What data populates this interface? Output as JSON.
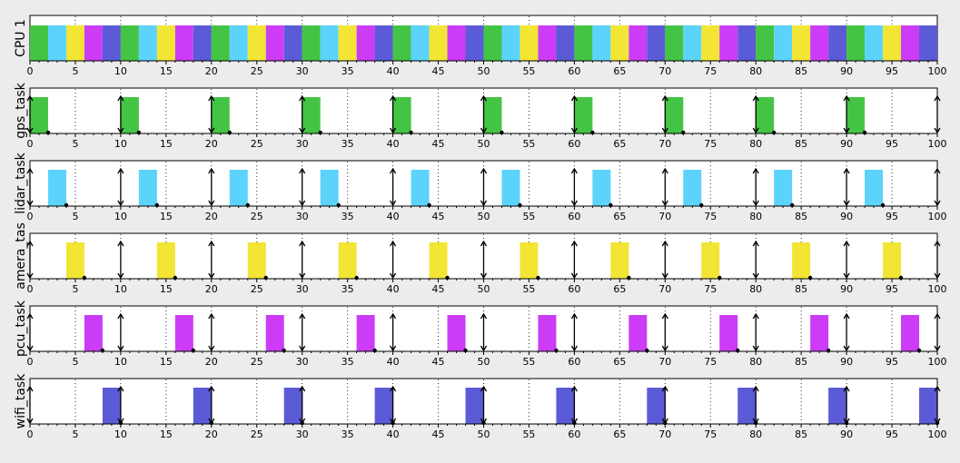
{
  "colors": {
    "gps_task": "#44c444",
    "lidar_task": "#5bd3fb",
    "camera_task": "#f2e534",
    "pcu_task": "#cc3cf6",
    "wifi_task": "#5b5bd7",
    "panel_bg": "#ececec",
    "plot_bg": "#ffffff",
    "axis": "#000000"
  },
  "chart_data": [
    {
      "type": "timeline",
      "ylabel": "CPU 1",
      "xlim": [
        0,
        100
      ],
      "xticks": [
        "0",
        "5",
        "10",
        "15",
        "20",
        "25",
        "30",
        "35",
        "40",
        "45",
        "50",
        "55",
        "60",
        "65",
        "70",
        "75",
        "80",
        "85",
        "90",
        "95",
        "100"
      ],
      "grid": "dotted vertical at every 5",
      "pattern": [
        "gps_task",
        "lidar_task",
        "camera_task",
        "pcu_task",
        "wifi_task"
      ],
      "slot_length": 2,
      "segments_from": 0,
      "segments_to": 100
    },
    {
      "type": "timeline",
      "ylabel": "gps_task",
      "task": "gps_task",
      "xlim": [
        0,
        100
      ],
      "xticks": [
        "0",
        "5",
        "10",
        "15",
        "20",
        "25",
        "30",
        "35",
        "40",
        "45",
        "50",
        "55",
        "60",
        "65",
        "70",
        "75",
        "80",
        "85",
        "90",
        "95",
        "100"
      ],
      "period": 10,
      "execution_start_offset": 0,
      "execution_length": 2,
      "releases": [
        0,
        10,
        20,
        30,
        40,
        50,
        60,
        70,
        80,
        90,
        100
      ],
      "deadlines": [
        2,
        12,
        22,
        32,
        42,
        52,
        62,
        72,
        82,
        92
      ]
    },
    {
      "type": "timeline",
      "ylabel": "lidar_task",
      "task": "lidar_task",
      "xlim": [
        0,
        100
      ],
      "xticks": [
        "0",
        "5",
        "10",
        "15",
        "20",
        "25",
        "30",
        "35",
        "40",
        "45",
        "50",
        "55",
        "60",
        "65",
        "70",
        "75",
        "80",
        "85",
        "90",
        "95",
        "100"
      ],
      "period": 10,
      "execution_start_offset": 2,
      "execution_length": 2,
      "releases": [
        0,
        10,
        20,
        30,
        40,
        50,
        60,
        70,
        80,
        90,
        100
      ],
      "deadlines": [
        4,
        14,
        24,
        34,
        44,
        54,
        64,
        74,
        84,
        94
      ]
    },
    {
      "type": "timeline",
      "ylabel": "amera_tas",
      "task": "camera_task",
      "xlim": [
        0,
        100
      ],
      "xticks": [
        "0",
        "5",
        "10",
        "15",
        "20",
        "25",
        "30",
        "35",
        "40",
        "45",
        "50",
        "55",
        "60",
        "65",
        "70",
        "75",
        "80",
        "85",
        "90",
        "95",
        "100"
      ],
      "period": 10,
      "execution_start_offset": 4,
      "execution_length": 2,
      "releases": [
        0,
        10,
        20,
        30,
        40,
        50,
        60,
        70,
        80,
        90,
        100
      ],
      "deadlines": [
        6,
        16,
        26,
        36,
        46,
        56,
        66,
        76,
        86,
        96
      ]
    },
    {
      "type": "timeline",
      "ylabel": "pcu_task",
      "task": "pcu_task",
      "xlim": [
        0,
        100
      ],
      "xticks": [
        "0",
        "5",
        "10",
        "15",
        "20",
        "25",
        "30",
        "35",
        "40",
        "45",
        "50",
        "55",
        "60",
        "65",
        "70",
        "75",
        "80",
        "85",
        "90",
        "95",
        "100"
      ],
      "period": 10,
      "execution_start_offset": 6,
      "execution_length": 2,
      "releases": [
        0,
        10,
        20,
        30,
        40,
        50,
        60,
        70,
        80,
        90,
        100
      ],
      "deadlines": [
        8,
        18,
        28,
        38,
        48,
        58,
        68,
        78,
        88,
        98
      ]
    },
    {
      "type": "timeline",
      "ylabel": "wifi_task",
      "task": "wifi_task",
      "xlim": [
        0,
        100
      ],
      "xticks": [
        "0",
        "5",
        "10",
        "15",
        "20",
        "25",
        "30",
        "35",
        "40",
        "45",
        "50",
        "55",
        "60",
        "65",
        "70",
        "75",
        "80",
        "85",
        "90",
        "95",
        "100"
      ],
      "period": 10,
      "execution_start_offset": 8,
      "execution_length": 2,
      "releases": [
        0,
        10,
        20,
        30,
        40,
        50,
        60,
        70,
        80,
        90,
        100
      ],
      "deadlines": [
        10,
        20,
        30,
        40,
        50,
        60,
        70,
        80,
        90,
        100
      ]
    }
  ]
}
